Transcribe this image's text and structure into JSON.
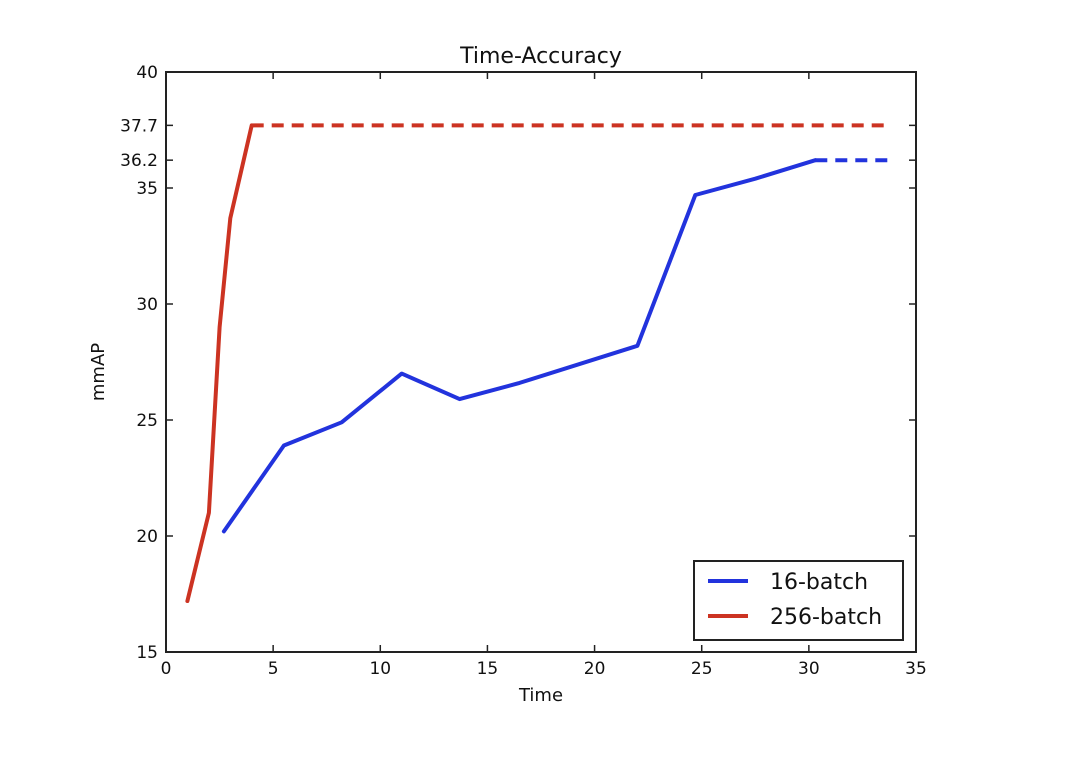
{
  "chart_data": {
    "type": "line",
    "title": "Time-Accuracy",
    "xlabel": "Time",
    "ylabel": "mmAP",
    "xlim": [
      0,
      35
    ],
    "ylim": [
      15,
      40
    ],
    "xticks": [
      0,
      5,
      10,
      15,
      20,
      25,
      30,
      35
    ],
    "yticks": [
      15,
      20,
      25,
      30,
      35,
      36.2,
      37.7,
      40
    ],
    "grid": false,
    "legend_position": "lower-right",
    "series": [
      {
        "name": "16-batch",
        "color": "#2233dd",
        "solid": [
          [
            2.7,
            20.2
          ],
          [
            5.5,
            23.9
          ],
          [
            8.2,
            24.9
          ],
          [
            11.0,
            27.0
          ],
          [
            13.7,
            25.9
          ],
          [
            16.5,
            26.6
          ],
          [
            22.0,
            28.2
          ],
          [
            24.7,
            34.7
          ],
          [
            27.5,
            35.4
          ],
          [
            30.3,
            36.2
          ]
        ],
        "dashed": [
          [
            30.3,
            36.2
          ],
          [
            33.7,
            36.2
          ]
        ]
      },
      {
        "name": "256-batch",
        "color": "#cc3322",
        "solid": [
          [
            1.0,
            17.2
          ],
          [
            2.0,
            21.0
          ],
          [
            2.5,
            29.0
          ],
          [
            3.0,
            33.7
          ],
          [
            4.0,
            37.7
          ]
        ],
        "dashed": [
          [
            4.0,
            37.7
          ],
          [
            33.7,
            37.7
          ]
        ]
      }
    ]
  }
}
